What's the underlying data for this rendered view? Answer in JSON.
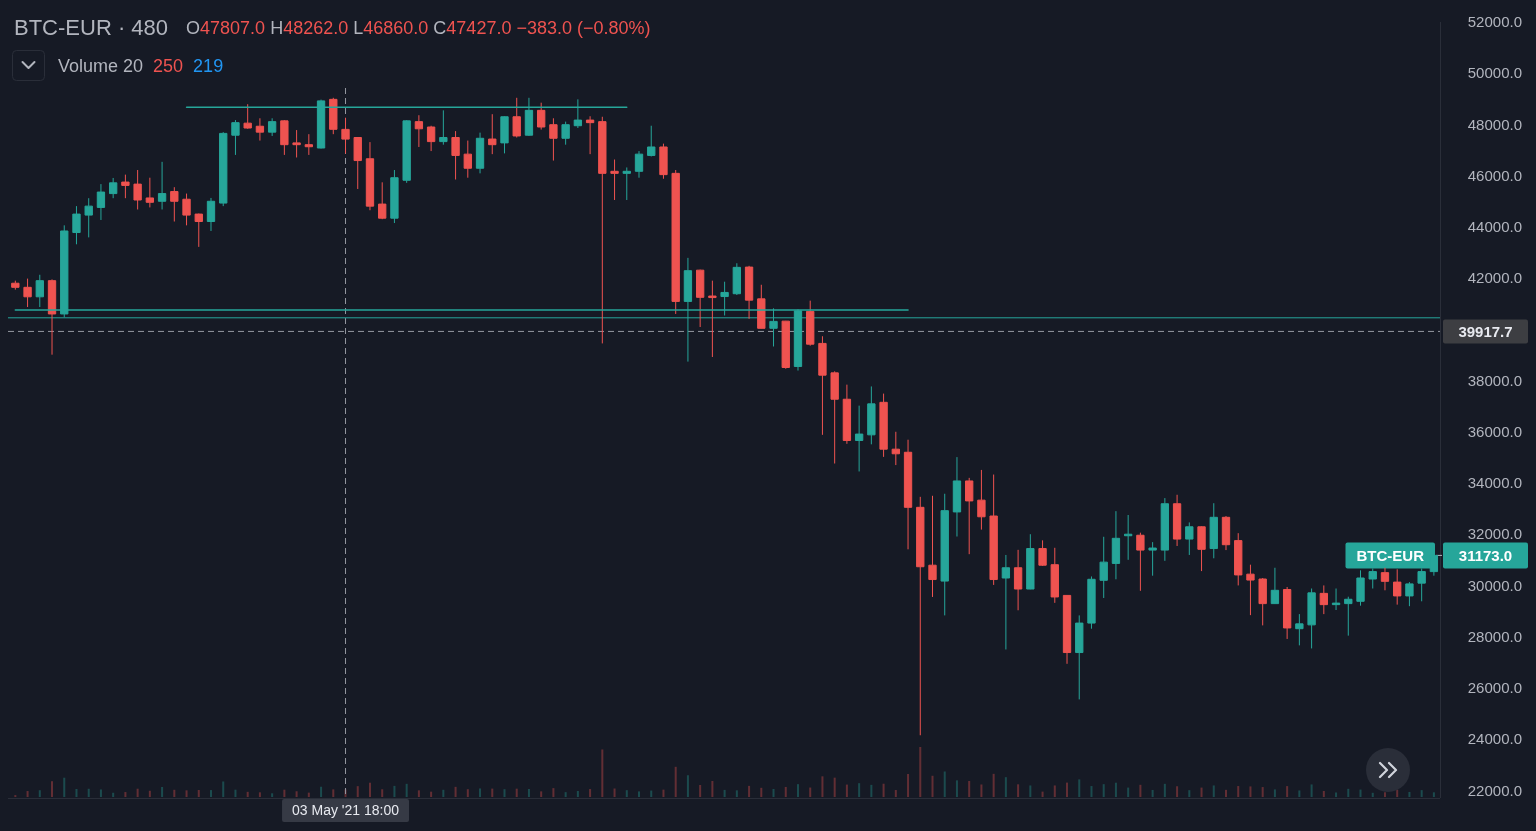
{
  "chart_data": {
    "type": "candlestick",
    "title": "BTC-EUR · 480",
    "subtitle": "O47807.0 H48262.0 L46860.0 C47427.0 −383.0 (−0.80%)",
    "annotations": [
      "Volume 20",
      "250",
      "219",
      "03 May '21 18:00",
      "BTC-EUR",
      "31173.0"
    ],
    "categories": [
      null,
      null,
      null,
      null,
      null,
      null,
      null,
      null,
      null,
      null,
      null,
      null,
      null,
      null,
      null,
      null,
      null,
      null,
      null,
      null,
      null,
      null,
      null,
      null,
      null,
      null,
      null,
      null,
      null,
      null,
      null,
      null,
      null,
      null,
      null,
      null,
      null,
      null,
      null,
      null,
      null,
      null,
      null,
      null,
      null,
      null,
      null,
      null,
      null,
      null,
      null,
      null,
      null,
      null,
      null,
      null,
      null,
      null,
      null,
      null,
      null,
      null,
      null,
      null,
      null,
      null,
      null,
      null,
      null,
      null,
      null,
      null,
      null,
      null,
      null,
      null,
      null,
      null,
      null,
      null,
      null,
      null,
      null,
      null,
      null,
      null,
      null,
      null,
      null,
      null,
      null,
      null,
      null,
      null,
      null,
      null,
      null,
      null,
      null,
      null,
      null,
      null,
      null,
      null,
      null,
      null,
      null,
      null,
      null,
      null,
      null,
      null,
      null,
      null,
      null,
      null,
      null
    ],
    "ohlc": [
      [
        41800,
        41900,
        41550,
        41640
      ],
      [
        41640,
        41980,
        40870,
        41270
      ],
      [
        41270,
        42130,
        40870,
        41900
      ],
      [
        41900,
        41950,
        39010,
        40600
      ],
      [
        40600,
        44060,
        40470,
        43840
      ],
      [
        43780,
        44810,
        43320,
        44500
      ],
      [
        44460,
        45120,
        43590,
        44810
      ],
      [
        44760,
        45670,
        44270,
        45360
      ],
      [
        45300,
        45910,
        45120,
        45720
      ],
      [
        45750,
        46040,
        45120,
        45620
      ],
      [
        45670,
        46220,
        44680,
        45050
      ],
      [
        45130,
        45920,
        44760,
        44960
      ],
      [
        45000,
        46540,
        44680,
        45300
      ],
      [
        45380,
        45550,
        44210,
        45000
      ],
      [
        45080,
        45300,
        44060,
        44460
      ],
      [
        44500,
        44520,
        43220,
        44210
      ],
      [
        44210,
        45130,
        43840,
        45000
      ],
      [
        44930,
        47700,
        44810,
        47650
      ],
      [
        47580,
        48170,
        46810,
        48070
      ],
      [
        48050,
        48790,
        47830,
        47860
      ],
      [
        47930,
        48240,
        47370,
        47700
      ],
      [
        47700,
        48240,
        47550,
        48110
      ],
      [
        48140,
        48170,
        46810,
        47210
      ],
      [
        47280,
        47780,
        46710,
        47210
      ],
      [
        47210,
        47620,
        46810,
        47130
      ],
      [
        47080,
        48970,
        47060,
        48920
      ],
      [
        48980,
        49040,
        47620,
        47810
      ],
      [
        47807,
        48262,
        46860,
        47427
      ],
      [
        47490,
        47500,
        45480,
        46590
      ],
      [
        46660,
        47310,
        44650,
        44810
      ],
      [
        44890,
        45740,
        44300,
        44340
      ],
      [
        44340,
        46220,
        44150,
        45920
      ],
      [
        45820,
        48170,
        45720,
        48140
      ],
      [
        48110,
        48360,
        47120,
        47830
      ],
      [
        47900,
        47950,
        46960,
        47330
      ],
      [
        47330,
        48550,
        47210,
        47490
      ],
      [
        47490,
        47740,
        45850,
        46790
      ],
      [
        46840,
        47370,
        45920,
        46290
      ],
      [
        46290,
        47680,
        46090,
        47460
      ],
      [
        47430,
        48400,
        46840,
        47210
      ],
      [
        47280,
        48320,
        46870,
        48300
      ],
      [
        48300,
        49040,
        47490,
        47550
      ],
      [
        47580,
        49040,
        47550,
        48550
      ],
      [
        48550,
        48850,
        47800,
        47900
      ],
      [
        47990,
        48240,
        46590,
        47460
      ],
      [
        47460,
        48110,
        47210,
        47990
      ],
      [
        47950,
        48980,
        47860,
        48170
      ],
      [
        48170,
        48320,
        46840,
        48070
      ],
      [
        48110,
        48300,
        39450,
        46090
      ],
      [
        46170,
        46630,
        45050,
        46090
      ],
      [
        46090,
        46320,
        45050,
        46170
      ],
      [
        46170,
        46960,
        45920,
        46840
      ],
      [
        46790,
        47950,
        46750,
        47120
      ],
      [
        47120,
        47250,
        45880,
        46040
      ],
      [
        46090,
        46220,
        40600,
        41090
      ],
      [
        41090,
        42790,
        38740,
        42290
      ],
      [
        42310,
        42330,
        40090,
        41250
      ],
      [
        41300,
        41900,
        38920,
        41240
      ],
      [
        41280,
        41860,
        40540,
        41440
      ],
      [
        41390,
        42580,
        41340,
        42420
      ],
      [
        42430,
        42480,
        40410,
        41140
      ],
      [
        41190,
        41740,
        40030,
        40040
      ],
      [
        40040,
        40820,
        39330,
        40310
      ],
      [
        40320,
        40330,
        38460,
        38510
      ],
      [
        38550,
        40780,
        38390,
        40720
      ],
      [
        40700,
        41120,
        39360,
        39420
      ],
      [
        39450,
        39730,
        35880,
        38210
      ],
      [
        38300,
        38360,
        34760,
        37270
      ],
      [
        37270,
        37840,
        35530,
        35660
      ],
      [
        35660,
        37020,
        34450,
        35910
      ],
      [
        35880,
        37770,
        35510,
        37090
      ],
      [
        37150,
        37490,
        35020,
        35320
      ],
      [
        35320,
        36000,
        34700,
        35140
      ],
      [
        35200,
        35690,
        31410,
        33050
      ],
      [
        33050,
        33460,
        24150,
        30730
      ],
      [
        30790,
        33500,
        29550,
        30230
      ],
      [
        30170,
        33580,
        28830,
        32920
      ],
      [
        32870,
        35010,
        31910,
        34080
      ],
      [
        34080,
        34200,
        31220,
        33300
      ],
      [
        33330,
        34510,
        32180,
        32680
      ],
      [
        32710,
        34330,
        30020,
        30230
      ],
      [
        30290,
        31190,
        27500,
        30690
      ],
      [
        30690,
        31390,
        29030,
        29860
      ],
      [
        29860,
        32000,
        29850,
        31440
      ],
      [
        31440,
        31760,
        30760,
        30790
      ],
      [
        30810,
        31470,
        29320,
        29550
      ],
      [
        29610,
        29620,
        26940,
        27380
      ],
      [
        27380,
        28830,
        25550,
        28530
      ],
      [
        28530,
        30350,
        28310,
        30240
      ],
      [
        30200,
        31900,
        29510,
        30910
      ],
      [
        30860,
        32900,
        30240,
        31840
      ],
      [
        31940,
        32750,
        31000,
        32000
      ],
      [
        31960,
        32060,
        29790,
        31380
      ],
      [
        31380,
        31690,
        30380,
        31460
      ],
      [
        31380,
        33410,
        30960,
        33190
      ],
      [
        33190,
        33540,
        31540,
        31810
      ],
      [
        31810,
        32460,
        31190,
        32290
      ],
      [
        32290,
        32310,
        30560,
        31410
      ],
      [
        31440,
        33210,
        31060,
        32660
      ],
      [
        32660,
        32710,
        31380,
        31590
      ],
      [
        31750,
        32040,
        30000,
        30410
      ],
      [
        30440,
        30810,
        28840,
        30210
      ],
      [
        30250,
        30290,
        28440,
        29290
      ],
      [
        29290,
        30690,
        29280,
        29810
      ],
      [
        29840,
        29940,
        27910,
        28340
      ],
      [
        28310,
        28880,
        27660,
        28500
      ],
      [
        28460,
        29880,
        27540,
        29710
      ],
      [
        29690,
        30000,
        28880,
        29250
      ],
      [
        29250,
        29880,
        29040,
        29310
      ],
      [
        29290,
        29560,
        28040,
        29460
      ],
      [
        29380,
        30590,
        29210,
        30290
      ],
      [
        30250,
        30660,
        29880,
        30540
      ],
      [
        30500,
        30690,
        29810,
        30160
      ],
      [
        30130,
        30630,
        29250,
        29590
      ],
      [
        29590,
        30130,
        29190,
        30060
      ],
      [
        30090,
        30660,
        29380,
        30540
      ],
      [
        30540,
        31250,
        30380,
        31173
      ]
    ],
    "colors": [
      "#ef5350",
      "#ef5350",
      "#26a69a",
      "#ef5350",
      "#26a69a",
      "#26a69a",
      "#26a69a",
      "#26a69a",
      "#26a69a",
      "#ef5350",
      "#ef5350",
      "#ef5350",
      "#26a69a",
      "#ef5350",
      "#ef5350",
      "#ef5350",
      "#26a69a",
      "#26a69a",
      "#26a69a",
      "#ef5350",
      "#ef5350",
      "#26a69a",
      "#ef5350",
      "#ef5350",
      "#ef5350",
      "#26a69a",
      "#ef5350",
      "#ef5350",
      "#ef5350",
      "#ef5350",
      "#ef5350",
      "#26a69a",
      "#26a69a",
      "#ef5350",
      "#ef5350",
      "#26a69a",
      "#ef5350",
      "#ef5350",
      "#26a69a",
      "#ef5350",
      "#26a69a",
      "#ef5350",
      "#26a69a",
      "#ef5350",
      "#ef5350",
      "#26a69a",
      "#26a69a",
      "#ef5350",
      "#ef5350",
      "#ef5350",
      "#26a69a",
      "#26a69a",
      "#26a69a",
      "#ef5350",
      "#ef5350",
      "#26a69a",
      "#ef5350",
      "#ef5350",
      "#26a69a",
      "#26a69a",
      "#ef5350",
      "#ef5350",
      "#26a69a",
      "#ef5350",
      "#26a69a",
      "#ef5350",
      "#ef5350",
      "#ef5350",
      "#ef5350",
      "#26a69a",
      "#26a69a",
      "#ef5350",
      "#ef5350",
      "#ef5350",
      "#ef5350",
      "#ef5350",
      "#26a69a",
      "#26a69a",
      "#ef5350",
      "#ef5350",
      "#ef5350",
      "#26a69a",
      "#ef5350",
      "#26a69a",
      "#ef5350",
      "#ef5350",
      "#ef5350",
      "#26a69a",
      "#26a69a",
      "#26a69a",
      "#26a69a",
      "#26a69a",
      "#ef5350",
      "#26a69a",
      "#26a69a",
      "#ef5350",
      "#26a69a",
      "#ef5350",
      "#26a69a",
      "#ef5350",
      "#ef5350",
      "#ef5350",
      "#ef5350",
      "#26a69a",
      "#ef5350",
      "#26a69a",
      "#26a69a",
      "#ef5350",
      "#26a69a",
      "#26a69a",
      "#26a69a",
      "#26a69a",
      "#ef5350",
      "#ef5350",
      "#26a69a",
      "#26a69a",
      "#26a69a"
    ],
    "series": [
      {
        "type": "line",
        "color": "#26a69a",
        "values": [
          null,
          null,
          null,
          null,
          null,
          null,
          null,
          null,
          null,
          null,
          null,
          null,
          null,
          null,
          48670,
          48670,
          48670,
          48670,
          48670,
          48670,
          48670,
          48670,
          48670,
          48670,
          48670,
          48670,
          48670,
          48670,
          48670,
          48670,
          48670,
          48670,
          48670,
          48670,
          48670,
          48670,
          48670,
          48670,
          48670,
          48670,
          48670,
          48670,
          48670,
          48670,
          48670,
          48670,
          48670,
          48670,
          48670,
          48670,
          48670,
          null,
          null,
          null,
          null,
          null,
          null,
          null,
          null,
          null,
          null,
          null,
          null,
          null,
          null,
          null,
          null,
          null,
          null,
          null,
          null,
          null,
          null,
          null,
          null,
          null,
          null,
          null,
          null,
          null,
          null,
          null,
          null,
          null,
          null,
          null,
          null,
          null,
          null,
          null,
          null,
          null,
          null,
          null,
          null,
          null,
          null,
          null,
          null,
          null,
          null,
          null,
          null,
          null,
          null,
          null,
          null,
          null,
          null,
          null,
          null,
          null,
          null,
          null,
          null,
          null,
          null
        ]
      },
      {
        "type": "line",
        "color": "#26a69a",
        "values": [
          40750,
          40750,
          40750,
          40750,
          40750,
          40750,
          40750,
          40750,
          40750,
          40750,
          40750,
          40750,
          40750,
          40750,
          40750,
          40750,
          40750,
          40750,
          40750,
          40750,
          40750,
          40750,
          40750,
          40750,
          40750,
          40750,
          40750,
          40750,
          40750,
          40750,
          40750,
          40750,
          40750,
          40750,
          40750,
          40750,
          40750,
          40750,
          40750,
          40750,
          40750,
          40750,
          40750,
          40750,
          40750,
          40750,
          40750,
          40750,
          40750,
          40750,
          40750,
          40750,
          40750,
          40750,
          40750,
          40750,
          40750,
          40750,
          40750,
          40750,
          40750,
          40750,
          40750,
          40750,
          40750,
          40750,
          40750,
          40750,
          40750,
          40750,
          40750,
          40750,
          40750,
          40750,
          null,
          null,
          null,
          null,
          null,
          null,
          null,
          null,
          null,
          null,
          null,
          null,
          null,
          null,
          null,
          null,
          null,
          null,
          null,
          null,
          null,
          null,
          null,
          null,
          null,
          null,
          null,
          null,
          null,
          null,
          null,
          null,
          null,
          null,
          null,
          null,
          null,
          null,
          null,
          null,
          null,
          null,
          null
        ]
      }
    ],
    "ref_lines": [
      {
        "axis": "y",
        "value": 40450,
        "color": "#26a69a"
      },
      {
        "axis": "y",
        "value": 39917.7,
        "label": "39917.7",
        "color": "#9598a1",
        "line_style": "dashed"
      }
    ],
    "ylim": [
      21700,
      52000
    ],
    "yticks": [
      {
        "value": 22000,
        "label": "22000.0"
      },
      {
        "value": 24000,
        "label": "24000.0"
      },
      {
        "value": 26000,
        "label": "26000.0"
      },
      {
        "value": 28000,
        "label": "28000.0"
      },
      {
        "value": 30000,
        "label": "30000.0"
      },
      {
        "value": 32000,
        "label": "32000.0"
      },
      {
        "value": 34000,
        "label": "34000.0"
      },
      {
        "value": 36000,
        "label": "36000.0"
      },
      {
        "value": 38000,
        "label": "38000.0"
      },
      {
        "value": 42000,
        "label": "42000.0"
      },
      {
        "value": 44000,
        "label": "44000.0"
      },
      {
        "value": 46000,
        "label": "46000.0"
      },
      {
        "value": 48000,
        "label": "48000.0"
      },
      {
        "value": 50000,
        "label": "50000.0"
      },
      {
        "value": 52000,
        "label": "52000.0"
      }
    ],
    "tick_labels": "y"
  }
}
